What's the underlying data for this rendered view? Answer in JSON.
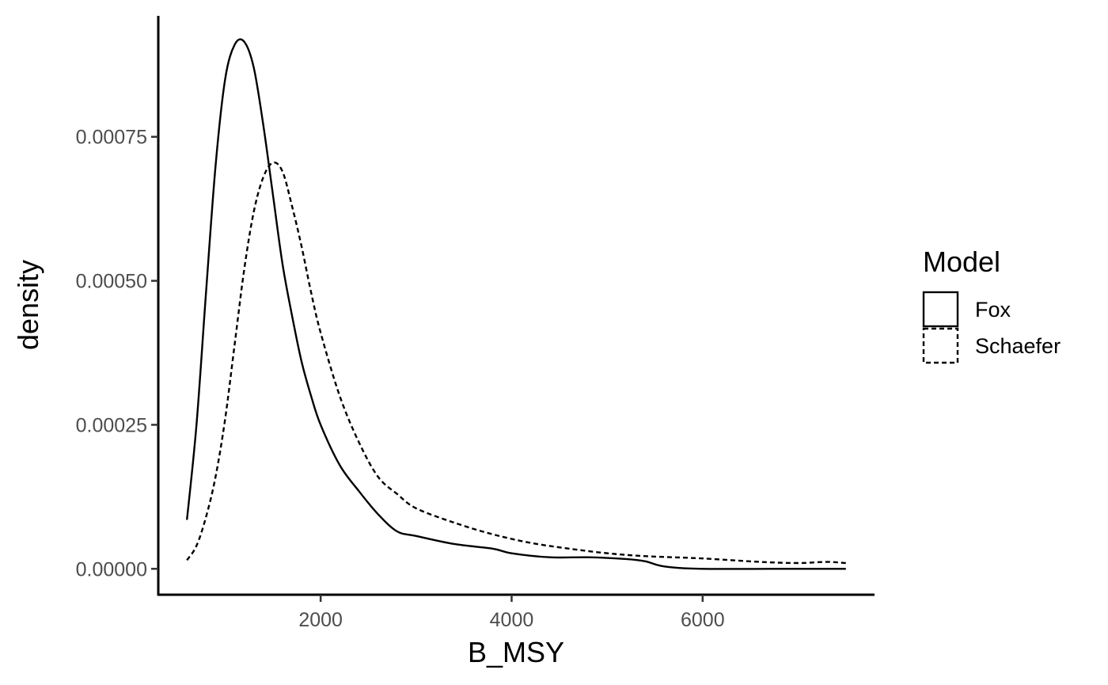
{
  "chart_data": {
    "type": "line",
    "chart_kind": "density",
    "xlabel": "B_MSY",
    "ylabel": "density",
    "xlim": [
      300,
      7800
    ],
    "ylim": [
      -4.5e-05,
      0.00096
    ],
    "x_ticks": [
      2000,
      4000,
      6000
    ],
    "x_tick_labels": [
      "2000",
      "4000",
      "6000"
    ],
    "y_ticks": [
      0,
      0.00025,
      0.0005,
      0.00075
    ],
    "y_tick_labels": [
      "0.00000",
      "0.00025",
      "0.00050",
      "0.00075"
    ],
    "grid": false,
    "legend": {
      "title": "Model",
      "position": "right"
    },
    "series": [
      {
        "name": "Fox",
        "linetype": "solid",
        "color": "#000000",
        "x": [
          600,
          700,
          800,
          900,
          1000,
          1100,
          1200,
          1300,
          1400,
          1500,
          1600,
          1700,
          1800,
          1900,
          2000,
          2200,
          2400,
          2600,
          2800,
          3000,
          3400,
          3800,
          4000,
          4400,
          4800,
          5200,
          5400,
          5600,
          6000,
          7000,
          7500
        ],
        "y": [
          8.5e-05,
          0.00025,
          0.00048,
          0.0007,
          0.00085,
          0.00091,
          0.000915,
          0.00087,
          0.00077,
          0.00065,
          0.00053,
          0.00044,
          0.00036,
          0.0003,
          0.00025,
          0.00018,
          0.000135,
          9.5e-05,
          6.5e-05,
          5.7e-05,
          4.3e-05,
          3.5e-05,
          2.7e-05,
          2e-05,
          2e-05,
          1.7e-05,
          1.3e-05,
          4e-06,
          0.0,
          0.0,
          0.0
        ]
      },
      {
        "name": "Schaefer",
        "linetype": "dashed",
        "color": "#000000",
        "x": [
          600,
          700,
          800,
          900,
          1000,
          1100,
          1200,
          1300,
          1400,
          1500,
          1600,
          1700,
          1800,
          1900,
          2000,
          2200,
          2400,
          2600,
          2800,
          3000,
          3400,
          3800,
          4200,
          4600,
          5000,
          5400,
          6000,
          6600,
          7000,
          7300,
          7500
        ],
        "y": [
          1.5e-05,
          4e-05,
          9e-05,
          0.00016,
          0.00026,
          0.00039,
          0.00052,
          0.00062,
          0.00068,
          0.000705,
          0.00069,
          0.00063,
          0.00056,
          0.00048,
          0.00041,
          0.0003,
          0.00022,
          0.00016,
          0.00013,
          0.000105,
          8e-05,
          6e-05,
          4.5e-05,
          3.5e-05,
          2.7e-05,
          2.2e-05,
          1.8e-05,
          1.2e-05,
          1e-05,
          1.2e-05,
          1e-05
        ]
      }
    ]
  }
}
